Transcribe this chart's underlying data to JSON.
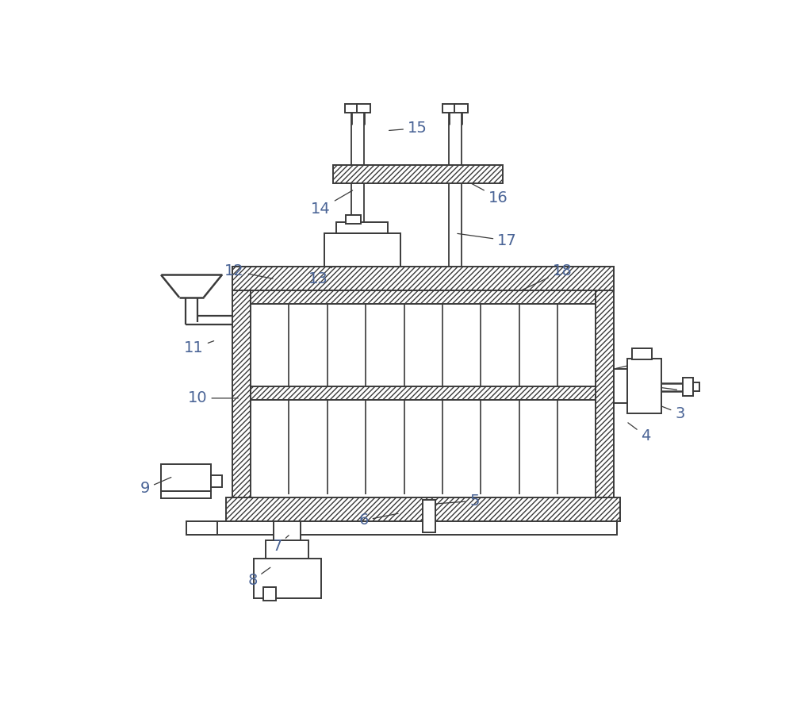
{
  "bg_color": "#ffffff",
  "line_color": "#3a3a3a",
  "label_color": "#4a6496",
  "fig_width": 10.0,
  "fig_height": 9.1
}
